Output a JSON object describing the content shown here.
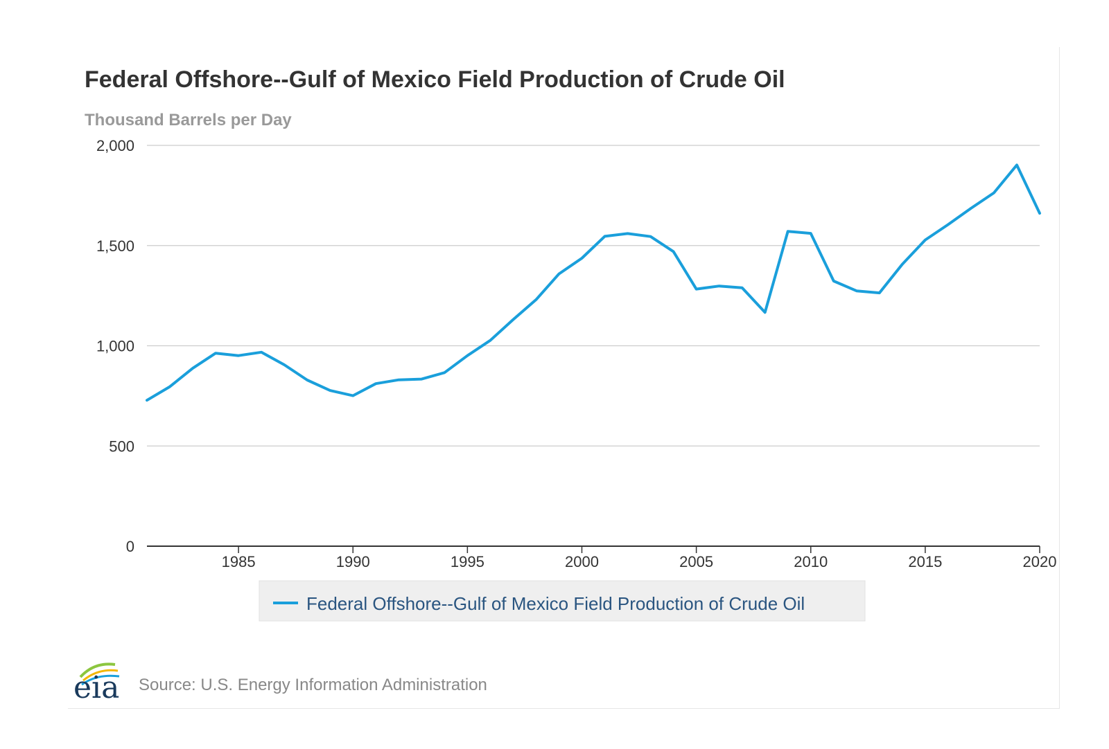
{
  "chart_data": {
    "type": "line",
    "title": "Federal Offshore--Gulf of Mexico Field Production of Crude Oil",
    "subtitle": "Thousand Barrels per Day",
    "xlim": [
      1981,
      2020
    ],
    "ylim": [
      0,
      2000
    ],
    "x_ticks": [
      "1985",
      "1990",
      "1995",
      "2000",
      "2005",
      "2010",
      "2015",
      "2020"
    ],
    "y_ticks": [
      "0",
      "500",
      "1,000",
      "1,500",
      "2,000"
    ],
    "grid": true,
    "legend_position": "bottom-center",
    "series": [
      {
        "name": "Federal Offshore--Gulf of Mexico Field Production of Crude Oil",
        "color": "#1a9fdb",
        "x": [
          1981,
          1982,
          1983,
          1984,
          1985,
          1986,
          1987,
          1988,
          1989,
          1990,
          1991,
          1992,
          1993,
          1994,
          1995,
          1996,
          1997,
          1998,
          1999,
          2000,
          2001,
          2002,
          2003,
          2004,
          2005,
          2006,
          2007,
          2008,
          2009,
          2010,
          2011,
          2012,
          2013,
          2014,
          2015,
          2016,
          2017,
          2018,
          2019,
          2020
        ],
        "values": [
          728,
          796,
          888,
          963,
          951,
          968,
          905,
          829,
          777,
          751,
          811,
          830,
          834,
          866,
          951,
          1027,
          1131,
          1230,
          1359,
          1437,
          1546,
          1560,
          1545,
          1470,
          1283,
          1298,
          1289,
          1167,
          1571,
          1561,
          1323,
          1274,
          1264,
          1407,
          1528,
          1605,
          1686,
          1763,
          1902,
          1661
        ]
      }
    ]
  },
  "source": "Source: U.S. Energy Information Administration",
  "logo": "eia"
}
